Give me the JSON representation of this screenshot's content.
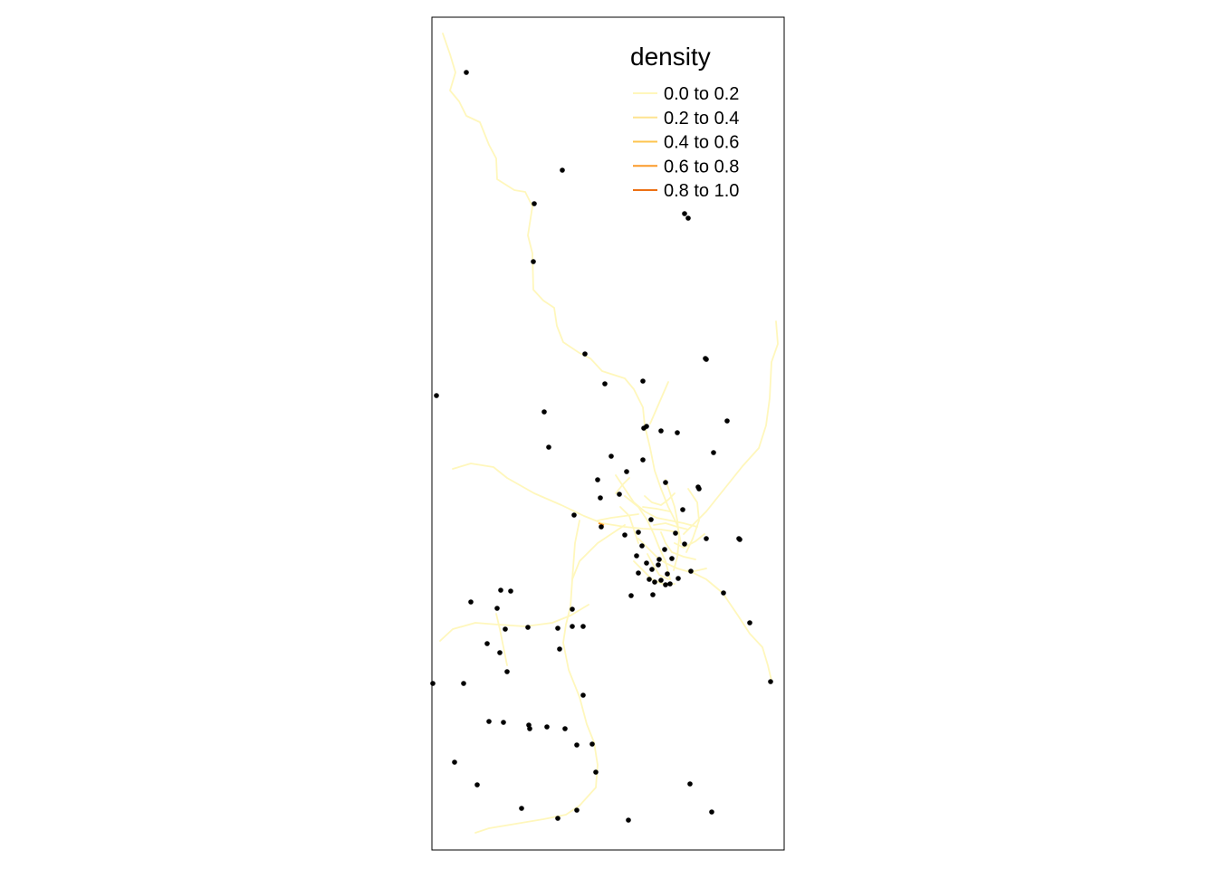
{
  "legend": {
    "title": "density",
    "classes": [
      {
        "label": "0.0 to 0.2",
        "color": "#FFF7BC"
      },
      {
        "label": "0.2 to 0.4",
        "color": "#FEE391"
      },
      {
        "label": "0.4 to 0.6",
        "color": "#FEC44F"
      },
      {
        "label": "0.6 to 0.8",
        "color": "#FB9A29"
      },
      {
        "label": "0.8 to 1.0",
        "color": "#EC7014"
      }
    ]
  },
  "colors": {
    "frame": "#000000",
    "points": "#000000",
    "background": "#ffffff"
  }
}
